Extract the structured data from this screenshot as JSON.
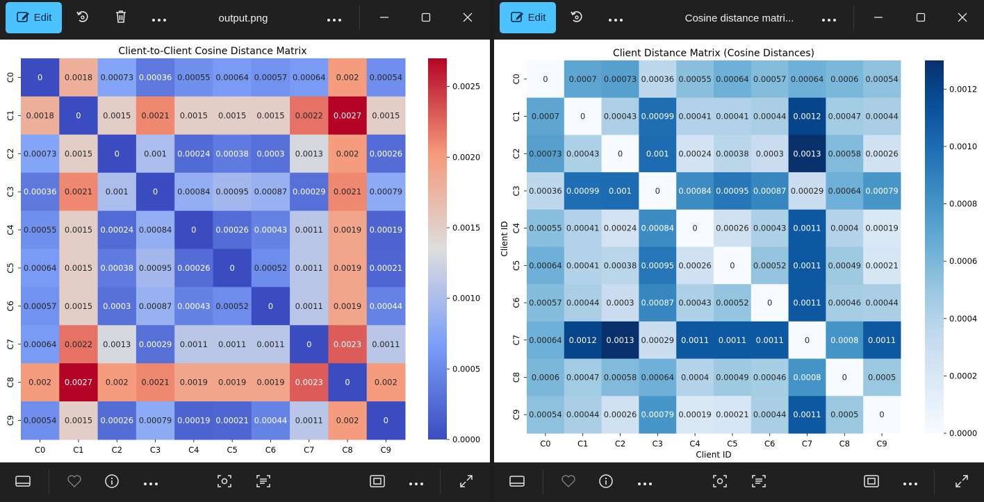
{
  "windows": {
    "left": {
      "edit_label": "Edit",
      "file_title": "output.png"
    },
    "right": {
      "edit_label": "Edit",
      "file_title": "Cosine distance matri..."
    }
  },
  "icons": [
    "edit-image-icon",
    "rotate-icon",
    "delete-icon",
    "more-icon",
    "minimize-icon",
    "maximize-icon",
    "close-icon",
    "slideshow-icon",
    "favorite-icon",
    "info-icon",
    "visual-search-icon",
    "text-scan-icon",
    "fit-view-icon",
    "expand-icon"
  ],
  "chart_data": [
    {
      "type": "heatmap",
      "title": "Client-to-Client Cosine Distance Matrix",
      "xlabel": "",
      "ylabel": "",
      "colormap": "coolwarm",
      "categories": [
        "C0",
        "C1",
        "C2",
        "C3",
        "C4",
        "C5",
        "C6",
        "C7",
        "C8",
        "C9"
      ],
      "value_range": [
        0,
        0.0027
      ],
      "colorbar_ticks": [
        "0.0000",
        "0.0005",
        "0.0010",
        "0.0015",
        "0.0020",
        "0.0025"
      ],
      "matrix": [
        [
          "0",
          "0.0018",
          "0.00073",
          "0.00036",
          "0.00055",
          "0.00064",
          "0.00057",
          "0.00064",
          "0.002",
          "0.00054"
        ],
        [
          "0.0018",
          "0",
          "0.0015",
          "0.0021",
          "0.0015",
          "0.0015",
          "0.0015",
          "0.0022",
          "0.0027",
          "0.0015"
        ],
        [
          "0.00073",
          "0.0015",
          "0",
          "0.001",
          "0.00024",
          "0.00038",
          "0.0003",
          "0.0013",
          "0.002",
          "0.00026"
        ],
        [
          "0.00036",
          "0.0021",
          "0.001",
          "0",
          "0.00084",
          "0.00095",
          "0.00087",
          "0.00029",
          "0.0021",
          "0.00079"
        ],
        [
          "0.00055",
          "0.0015",
          "0.00024",
          "0.00084",
          "0",
          "0.00026",
          "0.00043",
          "0.0011",
          "0.0019",
          "0.00019"
        ],
        [
          "0.00064",
          "0.0015",
          "0.00038",
          "0.00095",
          "0.00026",
          "0",
          "0.00052",
          "0.0011",
          "0.0019",
          "0.00021"
        ],
        [
          "0.00057",
          "0.0015",
          "0.0003",
          "0.00087",
          "0.00043",
          "0.00052",
          "0",
          "0.0011",
          "0.0019",
          "0.00044"
        ],
        [
          "0.00064",
          "0.0022",
          "0.0013",
          "0.00029",
          "0.0011",
          "0.0011",
          "0.0011",
          "0",
          "0.0023",
          "0.0011"
        ],
        [
          "0.002",
          "0.0027",
          "0.002",
          "0.0021",
          "0.0019",
          "0.0019",
          "0.0019",
          "0.0023",
          "0",
          "0.002"
        ],
        [
          "0.00054",
          "0.0015",
          "0.00026",
          "0.00079",
          "0.00019",
          "0.00021",
          "0.00044",
          "0.0011",
          "0.002",
          "0"
        ]
      ]
    },
    {
      "type": "heatmap",
      "title": "Client Distance Matrix (Cosine Distances)",
      "xlabel": "Client ID",
      "ylabel": "Client ID",
      "colormap": "Blues",
      "categories": [
        "C0",
        "C1",
        "C2",
        "C3",
        "C4",
        "C5",
        "C6",
        "C7",
        "C8",
        "C9"
      ],
      "value_range": [
        0,
        0.0013
      ],
      "colorbar_ticks": [
        "0.0000",
        "0.0002",
        "0.0004",
        "0.0006",
        "0.0008",
        "0.0010",
        "0.0012"
      ],
      "matrix": [
        [
          "0",
          "0.0007",
          "0.00073",
          "0.00036",
          "0.00055",
          "0.00064",
          "0.00057",
          "0.00064",
          "0.0006",
          "0.00054"
        ],
        [
          "0.0007",
          "0",
          "0.00043",
          "0.00099",
          "0.00041",
          "0.00041",
          "0.00044",
          "0.0012",
          "0.00047",
          "0.00044"
        ],
        [
          "0.00073",
          "0.00043",
          "0",
          "0.001",
          "0.00024",
          "0.00038",
          "0.0003",
          "0.0013",
          "0.00058",
          "0.00026"
        ],
        [
          "0.00036",
          "0.00099",
          "0.001",
          "0",
          "0.00084",
          "0.00095",
          "0.00087",
          "0.00029",
          "0.00064",
          "0.00079"
        ],
        [
          "0.00055",
          "0.00041",
          "0.00024",
          "0.00084",
          "0",
          "0.00026",
          "0.00043",
          "0.0011",
          "0.0004",
          "0.00019"
        ],
        [
          "0.00064",
          "0.00041",
          "0.00038",
          "0.00095",
          "0.00026",
          "0",
          "0.00052",
          "0.0011",
          "0.00049",
          "0.00021"
        ],
        [
          "0.00057",
          "0.00044",
          "0.0003",
          "0.00087",
          "0.00043",
          "0.00052",
          "0",
          "0.0011",
          "0.00046",
          "0.00044"
        ],
        [
          "0.00064",
          "0.0012",
          "0.0013",
          "0.00029",
          "0.0011",
          "0.0011",
          "0.0011",
          "0",
          "0.0008",
          "0.0011"
        ],
        [
          "0.0006",
          "0.00047",
          "0.00058",
          "0.00064",
          "0.0004",
          "0.00049",
          "0.00046",
          "0.0008",
          "0",
          "0.0005"
        ],
        [
          "0.00054",
          "0.00044",
          "0.00026",
          "0.00079",
          "0.00019",
          "0.00021",
          "0.00044",
          "0.0011",
          "0.0005",
          "0"
        ]
      ]
    }
  ]
}
